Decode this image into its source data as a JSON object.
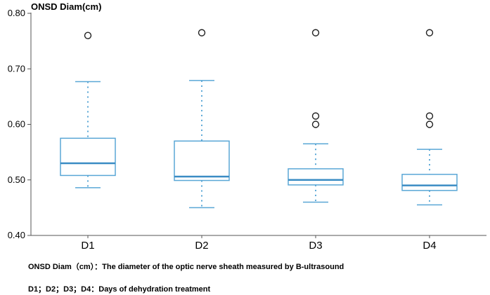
{
  "chart_data": {
    "type": "box",
    "title": "ONSD  Diam(cm)",
    "ylim": [
      0.4,
      0.8
    ],
    "yticks": [
      0.4,
      0.5,
      0.6,
      0.7,
      0.8
    ],
    "ytick_labels": [
      "0.40",
      "0.50",
      "0.60",
      "0.70",
      "0.80"
    ],
    "categories": [
      "D1",
      "D2",
      "D3",
      "D4"
    ],
    "boxes": [
      {
        "category": "D1",
        "whisker_low": 0.486,
        "q1": 0.508,
        "median": 0.53,
        "q3": 0.575,
        "whisker_high": 0.677,
        "outliers": [
          0.76
        ]
      },
      {
        "category": "D2",
        "whisker_low": 0.45,
        "q1": 0.499,
        "median": 0.506,
        "q3": 0.57,
        "whisker_high": 0.679,
        "outliers": [
          0.765
        ]
      },
      {
        "category": "D3",
        "whisker_low": 0.46,
        "q1": 0.491,
        "median": 0.5,
        "q3": 0.52,
        "whisker_high": 0.565,
        "outliers": [
          0.6,
          0.615,
          0.765
        ]
      },
      {
        "category": "D4",
        "whisker_low": 0.455,
        "q1": 0.481,
        "median": 0.49,
        "q3": 0.51,
        "whisker_high": 0.555,
        "outliers": [
          0.6,
          0.615,
          0.765
        ]
      }
    ],
    "colors": {
      "box": "#5aa7d6",
      "median": "#3a8cc4",
      "outlier": "#222222",
      "axis": "#555555"
    }
  },
  "notes": {
    "definition": "ONSD Diam（cm）：The diameter of the optic nerve sheath measured by B-ultrasound",
    "days": "D1；D2；D3；D4：Days of dehydration treatment"
  }
}
